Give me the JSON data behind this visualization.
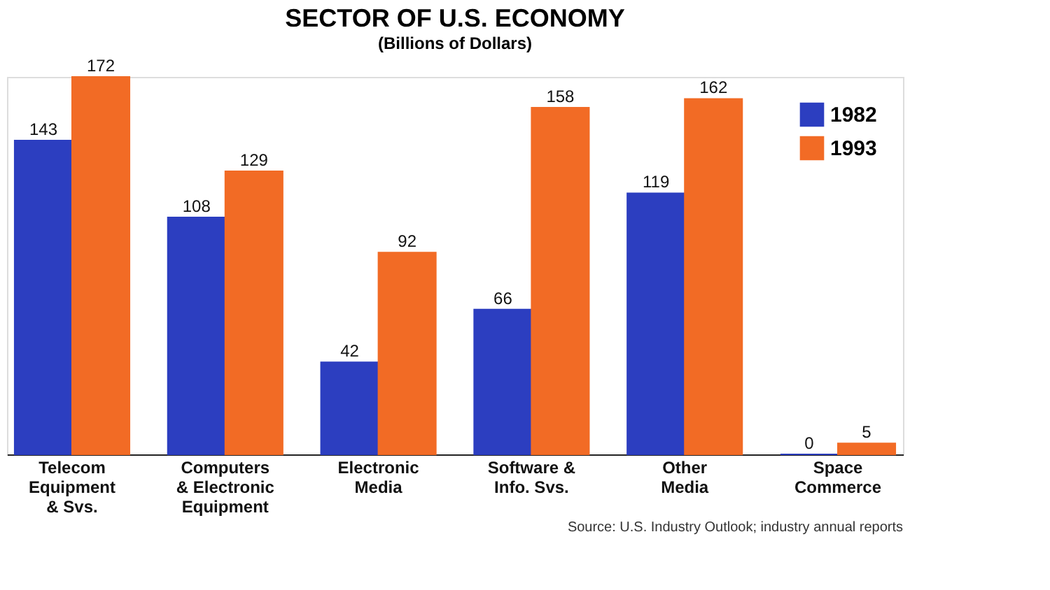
{
  "chart_data": {
    "type": "bar",
    "title": "SECTOR OF U.S. ECONOMY",
    "subtitle": "(Billions of Dollars)",
    "categories": [
      "Telecom\nEquipment\n& Svs.",
      "Computers\n& Electronic\nEquipment",
      "Electronic\nMedia",
      "Software &\nInfo. Svs.",
      "Other\nMedia",
      "Space\nCommerce"
    ],
    "series": [
      {
        "name": "1982",
        "color": "#2c3ec0",
        "values": [
          143,
          108,
          42,
          66,
          119,
          0
        ]
      },
      {
        "name": "1993",
        "color": "#f26b25",
        "values": [
          172,
          129,
          92,
          158,
          162,
          5
        ]
      }
    ],
    "data_labels": true,
    "legend": "top right",
    "grid": false,
    "annotations": [
      "Source: U.S. Industry Outlook; industry annual reports"
    ]
  }
}
